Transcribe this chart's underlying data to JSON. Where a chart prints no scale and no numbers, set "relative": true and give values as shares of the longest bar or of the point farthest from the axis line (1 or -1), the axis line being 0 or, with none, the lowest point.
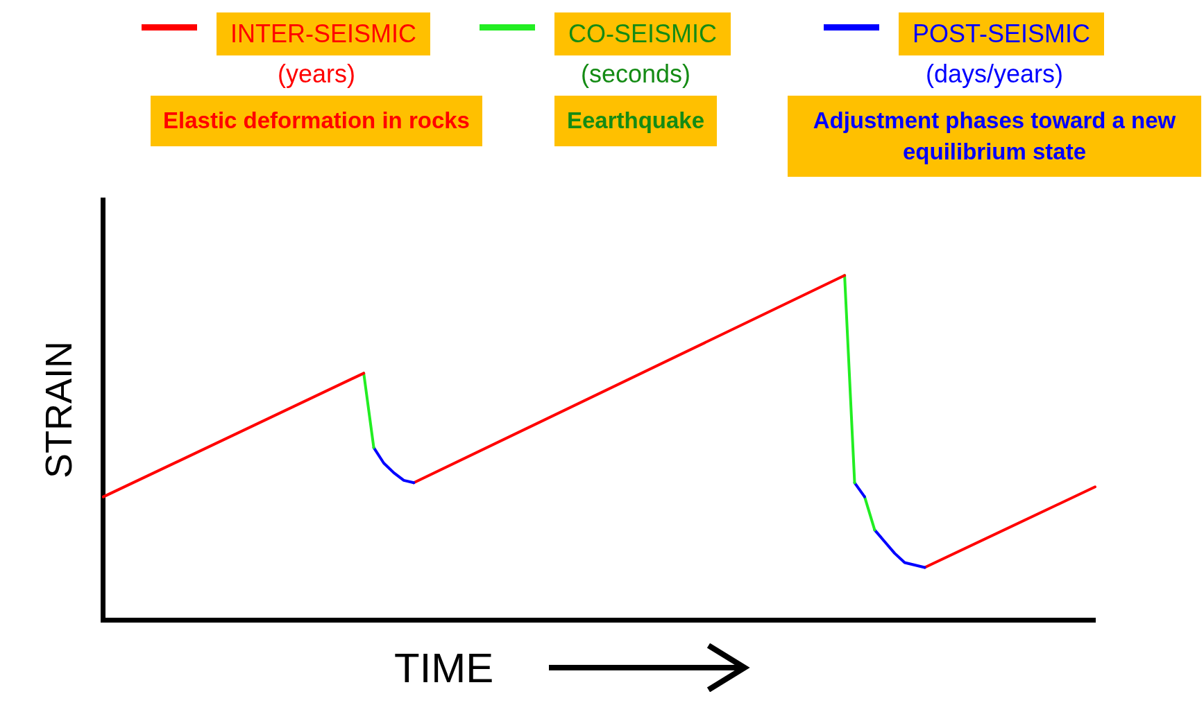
{
  "chart_data": {
    "type": "line",
    "relative": true,
    "xlabel": "TIME",
    "ylabel": "STRAIN",
    "grid": false,
    "legend": "top",
    "tick_labels": false,
    "marker": "none",
    "line_style": "solid",
    "annotations": [
      "(years)",
      "(seconds)",
      "(days/years)",
      "Elastic deformation in rocks",
      "Eearthquake",
      "Adjustment phases toward a new equilibrium state"
    ],
    "categories": [
      null,
      null,
      null,
      null,
      null,
      null,
      null,
      null,
      null,
      null,
      null,
      null,
      null,
      null,
      null,
      null,
      null,
      null,
      null,
      null,
      null,
      null,
      null,
      null,
      null,
      null,
      null,
      null,
      null,
      null,
      null,
      null,
      null,
      null,
      null,
      null,
      null,
      null,
      null,
      null,
      null,
      null,
      null,
      null,
      null,
      null,
      null,
      null,
      null,
      null,
      null,
      null,
      null,
      null,
      null,
      null,
      null,
      null,
      null,
      null,
      null,
      null,
      null,
      null,
      null,
      null,
      null,
      null,
      null,
      null,
      null,
      null,
      null,
      null,
      null,
      null,
      null,
      null,
      null,
      null,
      null,
      null,
      null,
      null,
      null,
      null,
      null,
      null,
      null,
      null,
      null,
      null,
      null,
      null,
      null,
      null,
      null,
      null,
      null,
      null
    ],
    "series": [
      {
        "name": "INTER-SEISMIC",
        "color": "#ff0000",
        "values": [
          0.357,
          null,
          null,
          null,
          null,
          null,
          null,
          null,
          null,
          null,
          null,
          null,
          null,
          null,
          null,
          null,
          null,
          null,
          null,
          null,
          null,
          null,
          null,
          null,
          null,
          null,
          0.716,
          null,
          null,
          null,
          null,
          null,
          null,
          null,
          null,
          null,
          null,
          null,
          null,
          null,
          null,
          null,
          null,
          null,
          null,
          null,
          null,
          null,
          null,
          null,
          null,
          null,
          null,
          null,
          null,
          null,
          null,
          null,
          null,
          null,
          null,
          null,
          null,
          null,
          null,
          null,
          null,
          null,
          null,
          null,
          null,
          null,
          null,
          null,
          null,
          null,
          null,
          null,
          null,
          null,
          null,
          null,
          null,
          null,
          null,
          null,
          null,
          null,
          null,
          null,
          null,
          null,
          null,
          null,
          null,
          null,
          null,
          null,
          null,
          null
        ]
      },
      {
        "name": "CO-SEISMIC",
        "color": "#22ee22",
        "values": [
          null,
          null,
          null,
          null,
          null,
          null,
          null,
          null,
          null,
          null,
          null,
          null,
          null,
          null,
          null,
          null,
          null,
          null,
          null,
          null,
          null,
          null,
          null,
          null,
          null,
          null,
          0.716,
          0.5,
          null,
          null,
          null,
          null,
          null,
          null,
          null,
          null,
          null,
          null,
          null,
          null,
          null,
          null,
          null,
          null,
          null,
          null,
          null,
          null,
          null,
          null,
          null,
          null,
          null,
          null,
          null,
          null,
          null,
          null,
          null,
          null,
          null,
          null,
          null,
          null,
          null,
          null,
          null,
          null,
          null,
          null,
          null,
          null,
          null,
          null,
          null,
          null,
          null,
          null,
          null,
          null,
          null,
          null,
          null,
          null,
          null,
          null,
          null,
          null,
          null,
          null,
          null,
          null,
          null,
          null,
          null,
          null,
          null,
          null,
          null,
          null
        ]
      },
      {
        "name": "POST-SEISMIC",
        "color": "#0000ff",
        "values": [
          null,
          null,
          null,
          null,
          null,
          null,
          null,
          null,
          null,
          null,
          null,
          null,
          null,
          null,
          null,
          null,
          null,
          null,
          null,
          null,
          null,
          null,
          null,
          null,
          null,
          null,
          null,
          0.5,
          0.455,
          0.427,
          0.405,
          0.398,
          null,
          null,
          null,
          null,
          null,
          null,
          null,
          null,
          null,
          null,
          null,
          null,
          null,
          null,
          null,
          null,
          null,
          null,
          null,
          null,
          null,
          null,
          null,
          null,
          null,
          null,
          null,
          null,
          null,
          null,
          null,
          null,
          null,
          null,
          null,
          null,
          null,
          null,
          null,
          null,
          null,
          null,
          null,
          null,
          null,
          null,
          null,
          null,
          null,
          null,
          null,
          null,
          null,
          null,
          null,
          null,
          null,
          null,
          null,
          null,
          null,
          null,
          null,
          null,
          null,
          null,
          null,
          null
        ]
      },
      {
        "color": "#ff0000",
        "values": [
          null,
          null,
          null,
          null,
          null,
          null,
          null,
          null,
          null,
          null,
          null,
          null,
          null,
          null,
          null,
          null,
          null,
          null,
          null,
          null,
          null,
          null,
          null,
          null,
          null,
          null,
          null,
          null,
          null,
          null,
          null,
          0.398,
          null,
          null,
          null,
          null,
          null,
          null,
          null,
          null,
          null,
          null,
          null,
          null,
          null,
          null,
          null,
          null,
          null,
          null,
          null,
          null,
          null,
          null,
          null,
          null,
          null,
          null,
          null,
          null,
          null,
          null,
          null,
          null,
          null,
          null,
          null,
          null,
          null,
          null,
          null,
          null,
          null,
          null,
          1.0,
          null,
          null,
          null,
          null,
          null,
          null,
          null,
          null,
          null,
          null,
          null,
          null,
          null,
          null,
          null,
          null,
          null,
          null,
          null,
          null,
          null,
          null,
          null,
          null,
          null
        ]
      },
      {
        "color": "#22ee22",
        "values": [
          null,
          null,
          null,
          null,
          null,
          null,
          null,
          null,
          null,
          null,
          null,
          null,
          null,
          null,
          null,
          null,
          null,
          null,
          null,
          null,
          null,
          null,
          null,
          null,
          null,
          null,
          null,
          null,
          null,
          null,
          null,
          null,
          null,
          null,
          null,
          null,
          null,
          null,
          null,
          null,
          null,
          null,
          null,
          null,
          null,
          null,
          null,
          null,
          null,
          null,
          null,
          null,
          null,
          null,
          null,
          null,
          null,
          null,
          null,
          null,
          null,
          null,
          null,
          null,
          null,
          null,
          null,
          null,
          null,
          null,
          null,
          null,
          null,
          null,
          1.0,
          0.398,
          null,
          null,
          null,
          null,
          null,
          null,
          null,
          null,
          null,
          null,
          null,
          null,
          null,
          null,
          null,
          null,
          null,
          null,
          null,
          null,
          null,
          null,
          null,
          null
        ]
      },
      {
        "color": "#0000ff",
        "values": [
          null,
          null,
          null,
          null,
          null,
          null,
          null,
          null,
          null,
          null,
          null,
          null,
          null,
          null,
          null,
          null,
          null,
          null,
          null,
          null,
          null,
          null,
          null,
          null,
          null,
          null,
          null,
          null,
          null,
          null,
          null,
          null,
          null,
          null,
          null,
          null,
          null,
          null,
          null,
          null,
          null,
          null,
          null,
          null,
          null,
          null,
          null,
          null,
          null,
          null,
          null,
          null,
          null,
          null,
          null,
          null,
          null,
          null,
          null,
          null,
          null,
          null,
          null,
          null,
          null,
          null,
          null,
          null,
          null,
          null,
          null,
          null,
          null,
          null,
          null,
          0.398,
          0.357,
          null,
          null,
          null,
          null,
          null,
          null,
          null,
          null,
          null,
          null,
          null,
          null,
          null,
          null,
          null,
          null,
          null,
          null,
          null,
          null,
          null,
          null,
          null
        ]
      },
      {
        "color": "#22ee22",
        "values": [
          null,
          null,
          null,
          null,
          null,
          null,
          null,
          null,
          null,
          null,
          null,
          null,
          null,
          null,
          null,
          null,
          null,
          null,
          null,
          null,
          null,
          null,
          null,
          null,
          null,
          null,
          null,
          null,
          null,
          null,
          null,
          null,
          null,
          null,
          null,
          null,
          null,
          null,
          null,
          null,
          null,
          null,
          null,
          null,
          null,
          null,
          null,
          null,
          null,
          null,
          null,
          null,
          null,
          null,
          null,
          null,
          null,
          null,
          null,
          null,
          null,
          null,
          null,
          null,
          null,
          null,
          null,
          null,
          null,
          null,
          null,
          null,
          null,
          null,
          null,
          null,
          0.357,
          0.261,
          null,
          null,
          null,
          null,
          null,
          null,
          null,
          null,
          null,
          null,
          null,
          null,
          null,
          null,
          null,
          null,
          null,
          null,
          null,
          null,
          null,
          null
        ]
      },
      {
        "color": "#0000ff",
        "values": [
          null,
          null,
          null,
          null,
          null,
          null,
          null,
          null,
          null,
          null,
          null,
          null,
          null,
          null,
          null,
          null,
          null,
          null,
          null,
          null,
          null,
          null,
          null,
          null,
          null,
          null,
          null,
          null,
          null,
          null,
          null,
          null,
          null,
          null,
          null,
          null,
          null,
          null,
          null,
          null,
          null,
          null,
          null,
          null,
          null,
          null,
          null,
          null,
          null,
          null,
          null,
          null,
          null,
          null,
          null,
          null,
          null,
          null,
          null,
          null,
          null,
          null,
          null,
          null,
          null,
          null,
          null,
          null,
          null,
          null,
          null,
          null,
          null,
          null,
          null,
          null,
          null,
          0.261,
          0.227,
          0.193,
          0.166,
          null,
          0.152,
          null,
          null,
          null,
          null,
          null,
          null,
          null,
          null,
          null,
          null,
          null,
          null,
          null,
          null,
          null,
          null,
          null
        ]
      },
      {
        "color": "#ff0000",
        "values": [
          null,
          null,
          null,
          null,
          null,
          null,
          null,
          null,
          null,
          null,
          null,
          null,
          null,
          null,
          null,
          null,
          null,
          null,
          null,
          null,
          null,
          null,
          null,
          null,
          null,
          null,
          null,
          null,
          null,
          null,
          null,
          null,
          null,
          null,
          null,
          null,
          null,
          null,
          null,
          null,
          null,
          null,
          null,
          null,
          null,
          null,
          null,
          null,
          null,
          null,
          null,
          null,
          null,
          null,
          null,
          null,
          null,
          null,
          null,
          null,
          null,
          null,
          null,
          null,
          null,
          null,
          null,
          null,
          null,
          null,
          null,
          null,
          null,
          null,
          null,
          null,
          null,
          null,
          null,
          null,
          null,
          null,
          0.152,
          null,
          null,
          null,
          null,
          null,
          null,
          null,
          null,
          null,
          null,
          null,
          null,
          null,
          null,
          null,
          null,
          0.386
        ]
      }
    ]
  }
}
